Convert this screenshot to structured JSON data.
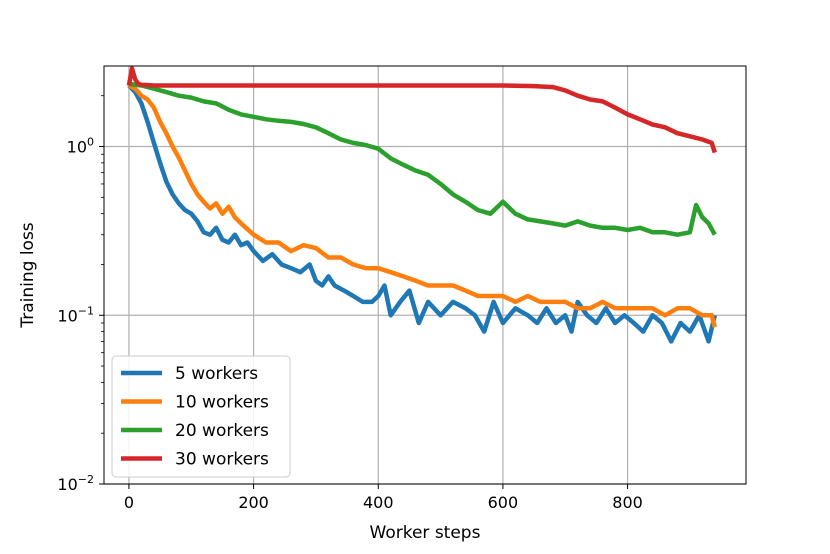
{
  "chart_data": {
    "type": "line",
    "xlabel": "Worker steps",
    "ylabel": "Training loss",
    "xlim": [
      -40,
      990
    ],
    "ylim": [
      0.01,
      3.0
    ],
    "yscale": "log",
    "grid": true,
    "legend_position": "lower-left",
    "x_ticks": [
      {
        "value": 0,
        "label": "0"
      },
      {
        "value": 200,
        "label": "200"
      },
      {
        "value": 400,
        "label": "400"
      },
      {
        "value": 600,
        "label": "600"
      },
      {
        "value": 800,
        "label": "800"
      }
    ],
    "y_ticks": [
      {
        "value": 0.01,
        "base": "10",
        "exp": "−2"
      },
      {
        "value": 0.1,
        "base": "10",
        "exp": "−1"
      },
      {
        "value": 1,
        "base": "10",
        "exp": "0"
      }
    ],
    "series": [
      {
        "name": "5 workers",
        "color": "#1f77b4",
        "x": [
          0,
          10,
          20,
          30,
          40,
          50,
          60,
          70,
          80,
          90,
          100,
          110,
          120,
          130,
          140,
          150,
          160,
          170,
          180,
          190,
          200,
          215,
          230,
          245,
          260,
          275,
          290,
          300,
          310,
          320,
          330,
          345,
          360,
          375,
          390,
          400,
          410,
          420,
          435,
          450,
          465,
          480,
          500,
          520,
          540,
          555,
          570,
          585,
          600,
          620,
          640,
          655,
          670,
          685,
          700,
          710,
          720,
          735,
          750,
          765,
          780,
          795,
          810,
          825,
          840,
          855,
          870,
          885,
          900,
          915,
          930,
          940
        ],
        "y": [
          2.3,
          2.1,
          1.8,
          1.4,
          1.05,
          0.8,
          0.62,
          0.52,
          0.46,
          0.42,
          0.4,
          0.36,
          0.31,
          0.3,
          0.33,
          0.28,
          0.27,
          0.3,
          0.26,
          0.27,
          0.24,
          0.21,
          0.23,
          0.2,
          0.19,
          0.18,
          0.2,
          0.16,
          0.15,
          0.17,
          0.15,
          0.14,
          0.13,
          0.12,
          0.12,
          0.13,
          0.15,
          0.1,
          0.12,
          0.14,
          0.09,
          0.12,
          0.1,
          0.12,
          0.11,
          0.1,
          0.08,
          0.12,
          0.09,
          0.11,
          0.1,
          0.09,
          0.11,
          0.09,
          0.1,
          0.08,
          0.12,
          0.1,
          0.09,
          0.11,
          0.09,
          0.1,
          0.09,
          0.08,
          0.1,
          0.09,
          0.07,
          0.09,
          0.08,
          0.1,
          0.07,
          0.1
        ]
      },
      {
        "name": "10 workers",
        "color": "#ff7f0e",
        "x": [
          0,
          10,
          20,
          30,
          40,
          50,
          60,
          70,
          80,
          90,
          100,
          110,
          120,
          130,
          140,
          150,
          160,
          170,
          180,
          200,
          220,
          240,
          260,
          280,
          300,
          320,
          340,
          360,
          380,
          400,
          420,
          440,
          460,
          480,
          500,
          520,
          540,
          560,
          580,
          600,
          620,
          640,
          660,
          680,
          700,
          720,
          740,
          760,
          780,
          800,
          820,
          840,
          860,
          880,
          900,
          920,
          935,
          940
        ],
        "y": [
          2.3,
          2.2,
          2.0,
          1.9,
          1.7,
          1.4,
          1.2,
          1.0,
          0.86,
          0.72,
          0.6,
          0.52,
          0.47,
          0.43,
          0.46,
          0.4,
          0.44,
          0.38,
          0.35,
          0.3,
          0.27,
          0.27,
          0.24,
          0.26,
          0.25,
          0.22,
          0.22,
          0.2,
          0.19,
          0.19,
          0.18,
          0.17,
          0.16,
          0.15,
          0.15,
          0.15,
          0.14,
          0.13,
          0.13,
          0.13,
          0.12,
          0.13,
          0.12,
          0.12,
          0.12,
          0.11,
          0.11,
          0.12,
          0.11,
          0.11,
          0.11,
          0.11,
          0.1,
          0.11,
          0.11,
          0.1,
          0.1,
          0.085
        ]
      },
      {
        "name": "20 workers",
        "color": "#2ca02c",
        "x": [
          0,
          20,
          40,
          60,
          80,
          100,
          120,
          140,
          160,
          180,
          200,
          220,
          240,
          260,
          280,
          300,
          320,
          340,
          360,
          380,
          400,
          420,
          440,
          460,
          480,
          500,
          520,
          540,
          560,
          580,
          600,
          620,
          640,
          660,
          680,
          700,
          720,
          740,
          760,
          780,
          800,
          820,
          840,
          860,
          880,
          900,
          910,
          920,
          930,
          940
        ],
        "y": [
          2.35,
          2.3,
          2.2,
          2.1,
          2.0,
          1.95,
          1.85,
          1.8,
          1.65,
          1.55,
          1.5,
          1.45,
          1.42,
          1.4,
          1.36,
          1.3,
          1.2,
          1.1,
          1.05,
          1.02,
          0.97,
          0.85,
          0.78,
          0.72,
          0.68,
          0.6,
          0.52,
          0.47,
          0.42,
          0.4,
          0.47,
          0.4,
          0.37,
          0.36,
          0.35,
          0.34,
          0.36,
          0.34,
          0.33,
          0.33,
          0.32,
          0.33,
          0.31,
          0.31,
          0.3,
          0.31,
          0.45,
          0.38,
          0.35,
          0.3
        ]
      },
      {
        "name": "30 workers",
        "color": "#d62728",
        "x": [
          0,
          5,
          10,
          15,
          20,
          40,
          80,
          120,
          160,
          200,
          250,
          300,
          350,
          400,
          450,
          500,
          550,
          600,
          650,
          680,
          700,
          720,
          740,
          760,
          780,
          800,
          820,
          840,
          860,
          880,
          900,
          920,
          935,
          940
        ],
        "y": [
          2.3,
          2.9,
          2.5,
          2.35,
          2.32,
          2.3,
          2.3,
          2.3,
          2.3,
          2.3,
          2.3,
          2.3,
          2.3,
          2.3,
          2.3,
          2.3,
          2.3,
          2.3,
          2.28,
          2.25,
          2.15,
          2.0,
          1.9,
          1.85,
          1.7,
          1.55,
          1.45,
          1.35,
          1.3,
          1.2,
          1.15,
          1.1,
          1.05,
          0.92
        ]
      }
    ]
  }
}
